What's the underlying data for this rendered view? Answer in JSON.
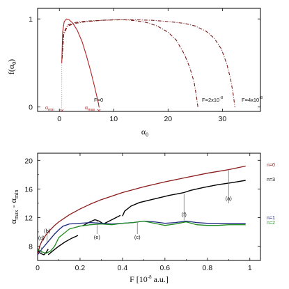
{
  "chart_data": [
    {
      "type": "line",
      "ylabel_main": "f(α",
      "ylabel_sub": "0",
      "ylabel_close": ")",
      "xlabel_main": "α",
      "xlabel_sub": "0",
      "xlim": [
        -4,
        37
      ],
      "ylim": [
        -0.05,
        1.12
      ],
      "xticks": [
        0,
        10,
        20,
        30
      ],
      "yticks": [
        0,
        1
      ],
      "series": [
        {
          "name": "F=0",
          "color": "#b22222",
          "dash": "",
          "x": [
            0.45,
            0.6,
            0.9,
            1.3,
            1.8,
            2.5,
            3.3,
            4.2,
            5.0,
            5.8,
            6.4,
            6.9,
            7.2,
            7.3
          ],
          "y": [
            0.5,
            0.85,
            0.97,
            1.0,
            0.99,
            0.95,
            0.87,
            0.74,
            0.58,
            0.4,
            0.25,
            0.12,
            0.04,
            0.0
          ]
        },
        {
          "name": "F=2x10-8",
          "color": "#7a1a1a",
          "dash": "5,2,1,2",
          "x": [
            0.5,
            0.8,
            1.5,
            3,
            5,
            8,
            10,
            12,
            14,
            16,
            18,
            20,
            21.5,
            23,
            24,
            24.8,
            25.2,
            25.5
          ],
          "y": [
            0.55,
            0.82,
            0.92,
            0.95,
            0.97,
            0.985,
            0.99,
            0.99,
            0.98,
            0.96,
            0.92,
            0.85,
            0.76,
            0.6,
            0.45,
            0.28,
            0.13,
            0.0
          ]
        },
        {
          "name": "F=4x10-8",
          "color": "#7a1a1a",
          "dash": "5,2,1,2",
          "x": [
            0.5,
            0.8,
            1.5,
            3,
            5,
            8,
            11,
            14,
            17,
            20,
            23,
            25,
            27,
            28.5,
            29.8,
            30.8,
            31.5,
            32.0,
            32.3
          ],
          "y": [
            0.55,
            0.84,
            0.93,
            0.96,
            0.975,
            0.985,
            0.99,
            0.99,
            0.985,
            0.97,
            0.95,
            0.92,
            0.86,
            0.78,
            0.66,
            0.49,
            0.32,
            0.14,
            0.0
          ]
        }
      ],
      "annotations": {
        "f0": "F=0",
        "f2_pre": "F=2x10",
        "f2_exp": "-8",
        "f4_pre": "F=4x10",
        "f4_exp": "-8",
        "amin_main": "α",
        "amin_sub": "min",
        "amax_main": "α",
        "amax_sub": "max",
        "amin_x": 0.45,
        "amax_x": 7.3
      }
    },
    {
      "type": "line",
      "ylabel_main": "α",
      "ylabel_sub1": "max",
      "ylabel_mid": " - α",
      "ylabel_sub2": "min",
      "xlabel": "F  [10",
      "xlabel_exp": "-8",
      "xlabel_tail": " a.u.]",
      "xlim": [
        0,
        1.05
      ],
      "ylim": [
        6,
        21
      ],
      "xticks": [
        0,
        0.2,
        0.4,
        0.6,
        0.8,
        1
      ],
      "xtick_labels": [
        "0",
        "0.2",
        "0.4",
        "0.6",
        "0.8",
        "1"
      ],
      "yticks": [
        8,
        12,
        16,
        20
      ],
      "series": [
        {
          "name": "n=0",
          "color": "#8b1a1a",
          "x": [
            0.0,
            0.01,
            0.02,
            0.04,
            0.06,
            0.08,
            0.1,
            0.15,
            0.2,
            0.25,
            0.3,
            0.4,
            0.5,
            0.6,
            0.7,
            0.8,
            0.9,
            0.98
          ],
          "y": [
            6.8,
            8.0,
            8.7,
            9.6,
            10.3,
            10.9,
            11.4,
            12.4,
            13.2,
            13.9,
            14.5,
            15.5,
            16.3,
            17.0,
            17.6,
            18.2,
            18.7,
            19.2
          ]
        },
        {
          "name": "n=3",
          "color": "#000000",
          "segments": [
            {
              "x": [
                0.0,
                0.01,
                0.02,
                0.03,
                0.04,
                0.05
              ],
              "y": [
                7.6,
                7.1,
                6.9,
                6.8,
                7.1,
                7.6
              ]
            },
            {
              "x": [
                0.05,
                0.07,
                0.1,
                0.13,
                0.16,
                0.19
              ],
              "y": [
                6.8,
                7.3,
                8.0,
                8.6,
                9.1,
                9.5
              ]
            },
            {
              "x": [
                0.21,
                0.24,
                0.27,
                0.29,
                0.31,
                0.35,
                0.39
              ],
              "y": [
                10.8,
                11.3,
                11.7,
                11.5,
                11.1,
                11.7,
                12.3
              ]
            },
            {
              "x": [
                0.4,
                0.41,
                0.44,
                0.48,
                0.55,
                0.62,
                0.69,
                0.72,
                0.78,
                0.85,
                0.92,
                0.98
              ],
              "y": [
                12.2,
                12.9,
                13.6,
                14.1,
                14.6,
                15.1,
                15.5,
                15.8,
                16.2,
                16.6,
                16.9,
                17.2
              ]
            }
          ]
        },
        {
          "name": "n=1",
          "color": "#1a237e",
          "x": [
            0.0,
            0.02,
            0.04,
            0.06,
            0.08,
            0.1,
            0.12,
            0.15,
            0.2,
            0.25,
            0.3,
            0.35,
            0.4,
            0.45,
            0.5,
            0.55,
            0.6,
            0.65,
            0.7,
            0.75,
            0.8,
            0.85,
            0.9,
            0.95,
            0.98
          ],
          "y": [
            6.8,
            7.6,
            8.3,
            9.0,
            9.7,
            10.3,
            10.8,
            11.1,
            11.2,
            11.3,
            11.2,
            11.1,
            11.2,
            11.3,
            11.5,
            11.4,
            11.2,
            11.3,
            11.5,
            11.3,
            11.2,
            11.2,
            11.2,
            11.2,
            11.2
          ]
        },
        {
          "name": "n=2",
          "color": "#1e8c1e",
          "x": [
            0.0,
            0.02,
            0.04,
            0.06,
            0.08,
            0.1,
            0.15,
            0.2,
            0.25,
            0.3,
            0.35,
            0.4,
            0.45,
            0.5,
            0.55,
            0.6,
            0.65,
            0.7,
            0.75,
            0.8,
            0.85,
            0.9,
            0.95,
            0.98
          ],
          "y": [
            7.5,
            7.2,
            7.0,
            7.3,
            8.0,
            9.2,
            10.4,
            10.8,
            11.0,
            11.1,
            11.0,
            11.2,
            11.3,
            11.5,
            11.2,
            10.9,
            11.1,
            11.4,
            11.0,
            10.9,
            10.9,
            11.0,
            11.0,
            11.0
          ]
        }
      ],
      "series_labels": {
        "n0": "n=0",
        "n3": "n=3",
        "n1": "n=1",
        "n2": "n=2"
      },
      "callouts": [
        {
          "text": "(a)",
          "x": 0.9,
          "y_top": 18.6,
          "y_bot": 14.0,
          "label_y": 14.7
        },
        {
          "text": "(b)",
          "x": 0.045,
          "y_top": 9.9,
          "y_bot": 8.6,
          "label_y": 10.2
        },
        {
          "text": "(c)",
          "x": 0.47,
          "y_top": 11.4,
          "y_bot": 9.7,
          "label_y": 9.3
        },
        {
          "text": "(d)",
          "x": 0.018,
          "y_top": 7.8,
          "y_bot": 7.1,
          "label_y": 9.2
        },
        {
          "text": "(e)",
          "x": 0.28,
          "y_top": 11.6,
          "y_bot": 9.7,
          "label_y": 9.3
        },
        {
          "text": "(f)",
          "x": 0.69,
          "y_top": 15.3,
          "y_bot": 11.6,
          "label_y": 12.5
        }
      ]
    }
  ]
}
